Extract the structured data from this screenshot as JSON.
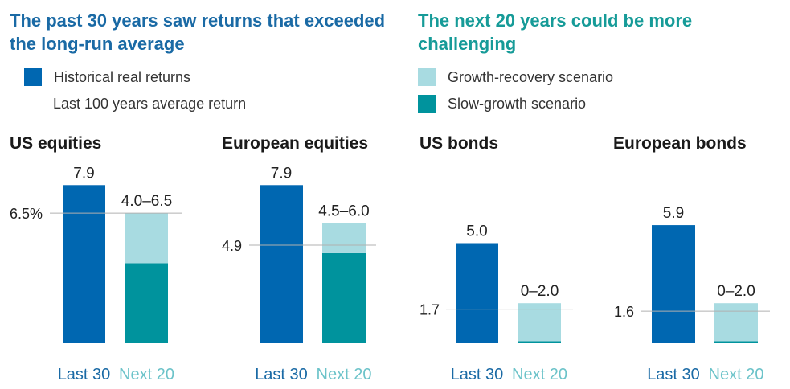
{
  "colors": {
    "historical": "#0067b1",
    "growth_recovery": "#a8dbe1",
    "slow_growth": "#00939d",
    "avg_line": "#b0b0b0",
    "last_label": "#1a6aa5",
    "next_label": "#6cc3c9"
  },
  "headings": {
    "left": "The past 30 years saw returns that exceeded the long-run average",
    "right": "The next 20 years could be more challenging"
  },
  "legend": {
    "historical": "Historical real returns",
    "avg_line": "Last 100 years average return",
    "growth_recovery": "Growth-recovery scenario",
    "slow_growth": "Slow-growth scenario"
  },
  "chart_data": [
    {
      "type": "bar",
      "title": "US equities",
      "categories": [
        "Last 30",
        "Next 20"
      ],
      "historical": 7.9,
      "historical_label": "7.9",
      "average": 6.5,
      "average_label": "6.5%",
      "scenario_low": 4.0,
      "scenario_high": 6.5,
      "scenario_label": "4.0–6.5"
    },
    {
      "type": "bar",
      "title": "European equities",
      "categories": [
        "Last 30",
        "Next 20"
      ],
      "historical": 7.9,
      "historical_label": "7.9",
      "average": 4.9,
      "average_label": "4.9",
      "scenario_low": 4.5,
      "scenario_high": 6.0,
      "scenario_label": "4.5–6.0"
    },
    {
      "type": "bar",
      "title": "US bonds",
      "categories": [
        "Last 30",
        "Next 20"
      ],
      "historical": 5.0,
      "historical_label": "5.0",
      "average": 1.7,
      "average_label": "1.7",
      "scenario_low": 0,
      "scenario_high": 2.0,
      "scenario_label": "0–2.0"
    },
    {
      "type": "bar",
      "title": "European bonds",
      "categories": [
        "Last 30",
        "Next 20"
      ],
      "historical": 5.9,
      "historical_label": "5.9",
      "average": 1.6,
      "average_label": "1.6",
      "scenario_low": 0,
      "scenario_high": 2.0,
      "scenario_label": "0–2.0"
    }
  ]
}
